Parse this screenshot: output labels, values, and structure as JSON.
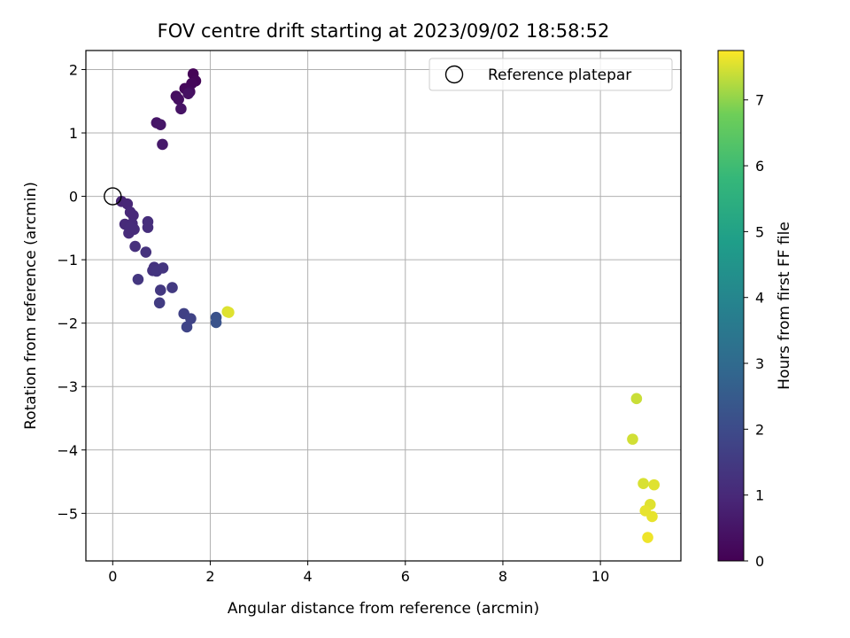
{
  "chart_data": {
    "type": "scatter",
    "title": "FOV centre drift starting at 2023/09/02 18:58:52",
    "xlabel": "Angular distance from reference (arcmin)",
    "ylabel": "Rotation from reference (arcmin)",
    "xlim": [
      -0.55,
      11.65
    ],
    "ylim": [
      -5.75,
      2.3
    ],
    "xticks": [
      0,
      2,
      4,
      6,
      8,
      10
    ],
    "yticks": [
      2,
      1,
      0,
      -1,
      -2,
      -3,
      -4,
      -5
    ],
    "xtick_labels": [
      "0",
      "2",
      "4",
      "6",
      "8",
      "10"
    ],
    "ytick_labels": [
      "2",
      "1",
      "0",
      "−1",
      "−2",
      "−3",
      "−4",
      "−5"
    ],
    "grid": true,
    "legend": {
      "label": "Reference platepar",
      "placement": "top-right"
    },
    "reference_point": {
      "x": 0,
      "y": 0
    },
    "colorbar": {
      "label": "Hours from first FF file",
      "range": [
        0,
        7.75
      ],
      "ticks": [
        0,
        1,
        2,
        3,
        4,
        5,
        6,
        7
      ],
      "tick_labels": [
        "0",
        "1",
        "2",
        "3",
        "4",
        "5",
        "6",
        "7"
      ],
      "colormap": "viridis"
    },
    "points": [
      {
        "x": 1.65,
        "y": 1.93,
        "hours": 0.05
      },
      {
        "x": 1.7,
        "y": 1.82,
        "hours": 0.1
      },
      {
        "x": 1.62,
        "y": 1.78,
        "hours": 0.15
      },
      {
        "x": 1.48,
        "y": 1.7,
        "hours": 0.2
      },
      {
        "x": 1.58,
        "y": 1.65,
        "hours": 0.25
      },
      {
        "x": 1.3,
        "y": 1.58,
        "hours": 0.3
      },
      {
        "x": 1.35,
        "y": 1.53,
        "hours": 0.35
      },
      {
        "x": 1.55,
        "y": 1.62,
        "hours": 0.4
      },
      {
        "x": 1.4,
        "y": 1.38,
        "hours": 0.45
      },
      {
        "x": 0.9,
        "y": 1.16,
        "hours": 0.5
      },
      {
        "x": 0.98,
        "y": 1.13,
        "hours": 0.55
      },
      {
        "x": 1.02,
        "y": 0.82,
        "hours": 0.6
      },
      {
        "x": 0.18,
        "y": -0.08,
        "hours": 0.9
      },
      {
        "x": 0.3,
        "y": -0.12,
        "hours": 0.95
      },
      {
        "x": 0.36,
        "y": -0.25,
        "hours": 1.0
      },
      {
        "x": 0.42,
        "y": -0.3,
        "hours": 1.0
      },
      {
        "x": 0.25,
        "y": -0.44,
        "hours": 1.05
      },
      {
        "x": 0.4,
        "y": -0.43,
        "hours": 1.05
      },
      {
        "x": 0.44,
        "y": -0.52,
        "hours": 1.1
      },
      {
        "x": 0.33,
        "y": -0.58,
        "hours": 1.1
      },
      {
        "x": 0.36,
        "y": -0.5,
        "hours": 1.1
      },
      {
        "x": 0.72,
        "y": -0.4,
        "hours": 1.15
      },
      {
        "x": 0.72,
        "y": -0.49,
        "hours": 1.15
      },
      {
        "x": 0.46,
        "y": -0.79,
        "hours": 1.2
      },
      {
        "x": 0.68,
        "y": -0.88,
        "hours": 1.25
      },
      {
        "x": 0.85,
        "y": -1.12,
        "hours": 1.3
      },
      {
        "x": 0.82,
        "y": -1.17,
        "hours": 1.3
      },
      {
        "x": 0.9,
        "y": -1.18,
        "hours": 1.35
      },
      {
        "x": 1.03,
        "y": -1.13,
        "hours": 1.35
      },
      {
        "x": 0.52,
        "y": -1.31,
        "hours": 1.4
      },
      {
        "x": 0.98,
        "y": -1.48,
        "hours": 1.45
      },
      {
        "x": 1.22,
        "y": -1.44,
        "hours": 1.5
      },
      {
        "x": 0.96,
        "y": -1.68,
        "hours": 1.55
      },
      {
        "x": 1.46,
        "y": -1.85,
        "hours": 1.7
      },
      {
        "x": 1.6,
        "y": -1.93,
        "hours": 1.75
      },
      {
        "x": 1.52,
        "y": -2.06,
        "hours": 1.8
      },
      {
        "x": 2.12,
        "y": -1.91,
        "hours": 2.2
      },
      {
        "x": 2.12,
        "y": -1.99,
        "hours": 2.25
      },
      {
        "x": 2.35,
        "y": -1.82,
        "hours": 7.5
      },
      {
        "x": 2.38,
        "y": -1.83,
        "hours": 7.55
      },
      {
        "x": 10.74,
        "y": -3.19,
        "hours": 7.4
      },
      {
        "x": 10.66,
        "y": -3.83,
        "hours": 7.45
      },
      {
        "x": 10.88,
        "y": -4.53,
        "hours": 7.5
      },
      {
        "x": 11.1,
        "y": -4.55,
        "hours": 7.55
      },
      {
        "x": 11.02,
        "y": -4.86,
        "hours": 7.55
      },
      {
        "x": 10.92,
        "y": -4.96,
        "hours": 7.6
      },
      {
        "x": 11.06,
        "y": -5.05,
        "hours": 7.6
      },
      {
        "x": 10.97,
        "y": -5.38,
        "hours": 7.65
      }
    ]
  }
}
